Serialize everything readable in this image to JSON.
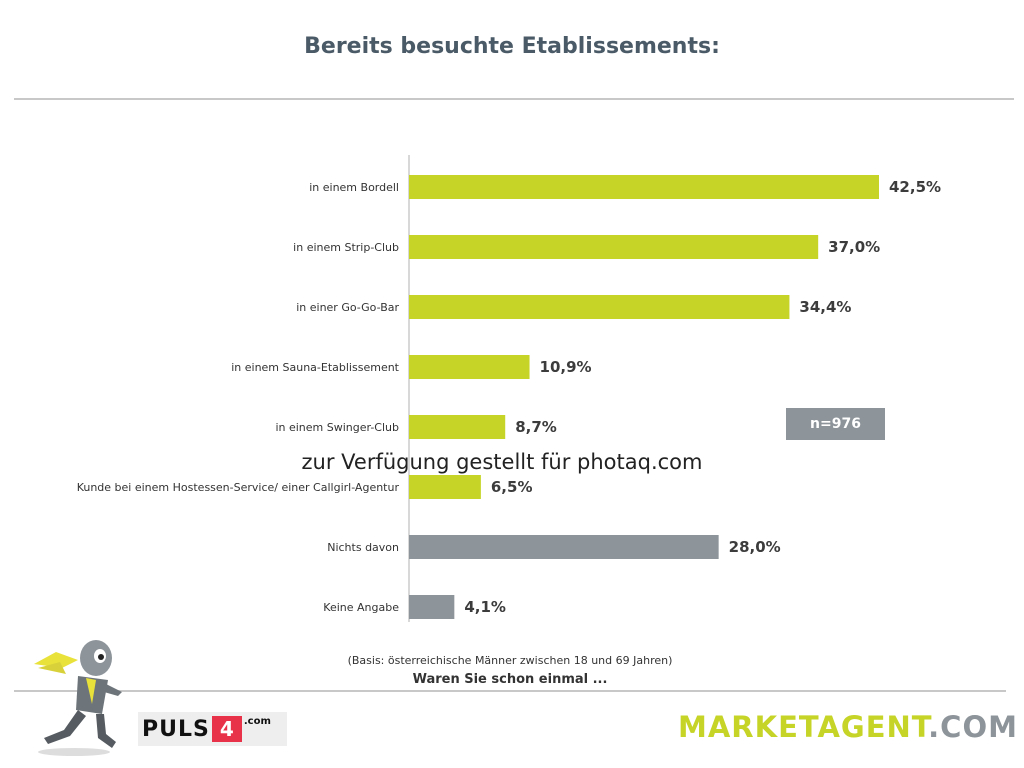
{
  "chart_data": {
    "type": "bar",
    "orientation": "horizontal",
    "title": "Bereits besuchte Etablissements:",
    "categories": [
      "in einem Bordell",
      "in einem Strip-Club",
      "in einer Go-Go-Bar",
      "in einem Sauna-Etablissement",
      "in einem Swinger-Club",
      "Kunde bei einem Hostessen-Service/ einer Callgirl-Agentur",
      "Nichts davon",
      "Keine Angabe"
    ],
    "values": [
      42.5,
      37.0,
      34.4,
      10.9,
      8.7,
      6.5,
      28.0,
      4.1
    ],
    "value_labels": [
      "42,5%",
      "37,0%",
      "34,4%",
      "10,9%",
      "8,7%",
      "6,5%",
      "28,0%",
      "4,1%"
    ],
    "bar_colors": [
      "#c5d426",
      "#c5d426",
      "#c5d426",
      "#c5d426",
      "#c5d426",
      "#c5d426",
      "#8d949a",
      "#8d949a"
    ],
    "xlim": [
      0,
      42.5
    ],
    "grid": false
  },
  "sample_size": "n=976",
  "watermark": "zur Verfügung gestellt für photaq.com",
  "basis": "(Basis: österreichische Männer zwischen 18 und 69 Jahren)",
  "question": "Waren Sie schon einmal ...",
  "logos": {
    "puls4_left": "PULS",
    "puls4_number": "4",
    "puls4_suffix": ".com",
    "marketagent_a": "MARKETAGENT",
    "marketagent_b": ".COM"
  },
  "colors": {
    "accent": "#c5d426",
    "neutral": "#8d949a",
    "title": "#4a5a66"
  }
}
